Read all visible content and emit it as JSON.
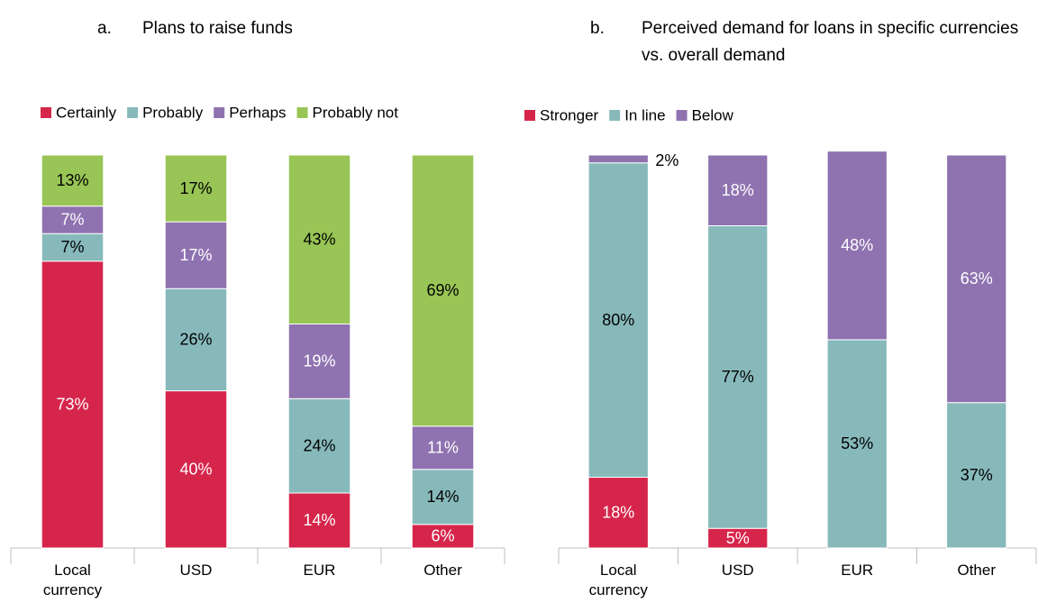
{
  "chart_data": [
    {
      "type": "stacked_bar",
      "panel": "a.",
      "title": "Plans to raise funds",
      "categories": [
        "Local currency",
        "USD",
        "EUR",
        "Other"
      ],
      "ylim": [
        0,
        100
      ],
      "series": [
        {
          "name": "Certainly",
          "color": "#d6254b",
          "values": [
            73,
            40,
            14,
            6
          ],
          "value_labels": [
            "73%",
            "40%",
            "14%",
            "6%"
          ]
        },
        {
          "name": "Probably",
          "color": "#87b9bb",
          "values": [
            7,
            26,
            24,
            14
          ],
          "value_labels": [
            "7%",
            "26%",
            "24%",
            "14%"
          ]
        },
        {
          "name": "Perhaps",
          "color": "#8f72b0",
          "values": [
            7,
            17,
            19,
            11
          ],
          "value_labels": [
            "7%",
            "17%",
            "19%",
            "11%"
          ]
        },
        {
          "name": "Probably not",
          "color": "#98c555",
          "values": [
            13,
            17,
            43,
            69
          ],
          "value_labels": [
            "13%",
            "17%",
            "43%",
            "69%"
          ]
        }
      ]
    },
    {
      "type": "stacked_bar",
      "panel": "b.",
      "title": "Perceived demand for loans in specific currencies vs. overall demand",
      "categories": [
        "Local currency",
        "USD",
        "EUR",
        "Other"
      ],
      "ylim": [
        0,
        100
      ],
      "series": [
        {
          "name": "Stronger",
          "color": "#d6254b",
          "values": [
            18,
            5,
            null,
            null
          ],
          "value_labels": [
            "18%",
            "5%",
            null,
            null
          ]
        },
        {
          "name": "In line",
          "color": "#87b9bb",
          "values": [
            80,
            77,
            53,
            37
          ],
          "value_labels": [
            "80%",
            "77%",
            "53%",
            "37%"
          ]
        },
        {
          "name": "Below",
          "color": "#8f72b0",
          "values": [
            2,
            18,
            48,
            63
          ],
          "value_labels": [
            "2%",
            "18%",
            "48%",
            "63%"
          ]
        }
      ]
    }
  ]
}
